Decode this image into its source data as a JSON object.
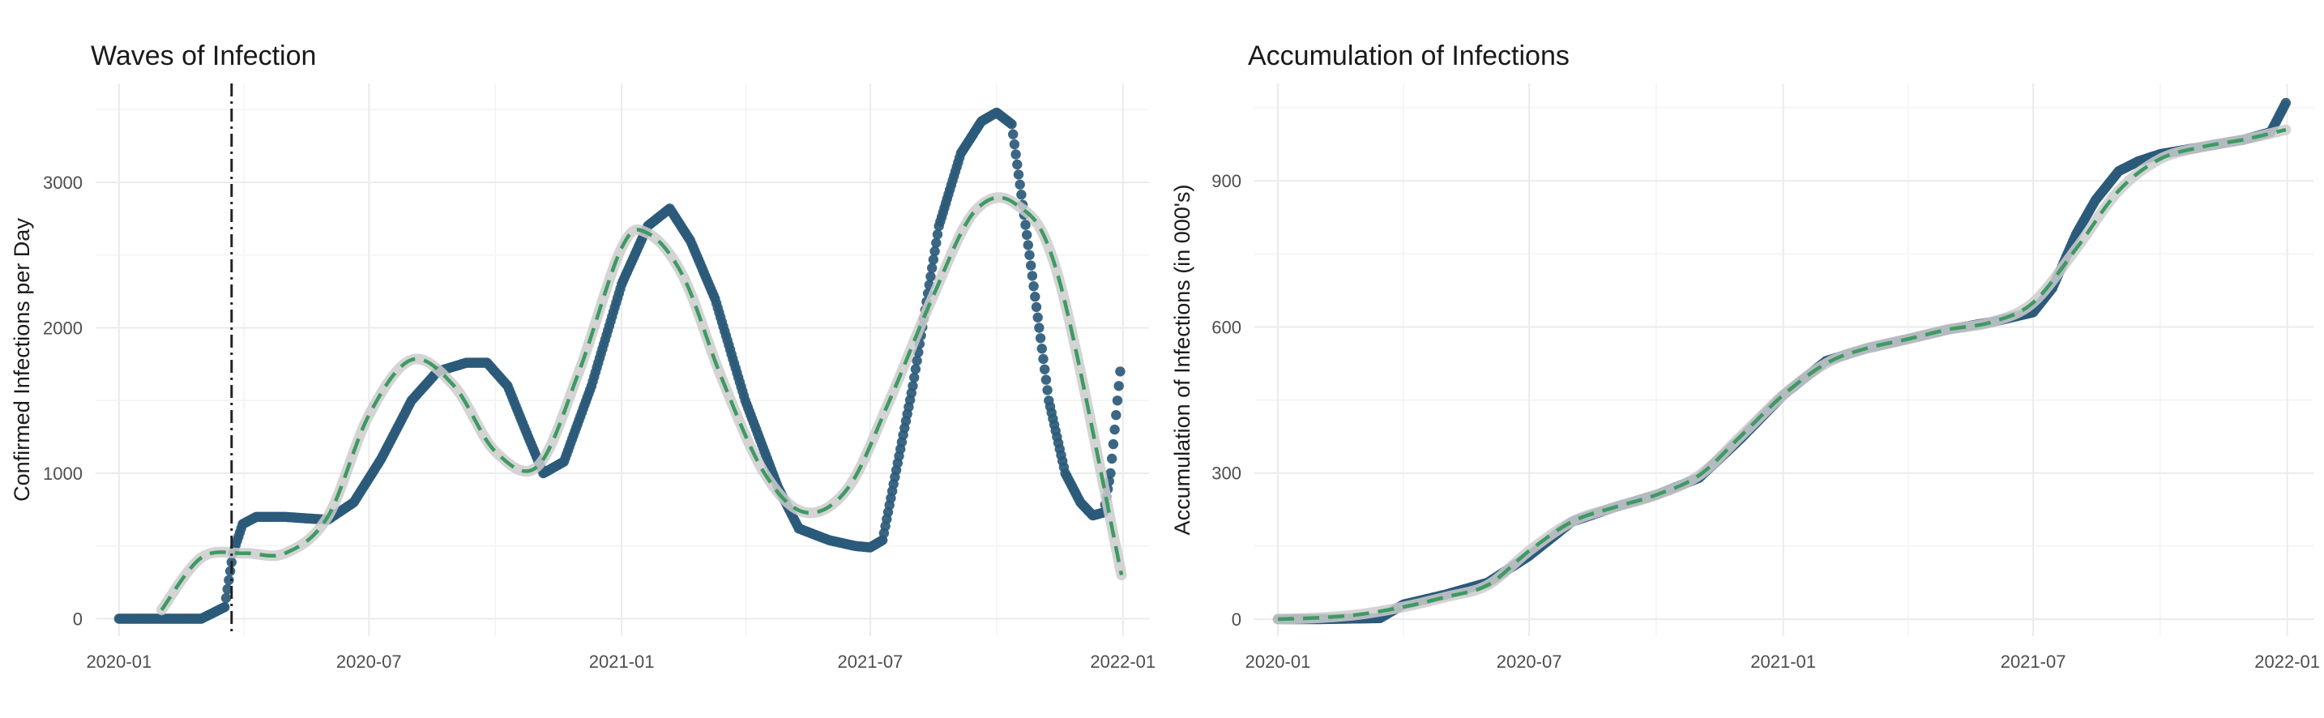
{
  "chart_data": [
    {
      "type": "scatter",
      "title": "Waves of Infection",
      "xlabel": "",
      "ylabel": "Confirmed Infections per Day",
      "x_ticks": [
        "2020-01",
        "2020-07",
        "2021-01",
        "2021-07",
        "2022-01"
      ],
      "y_ticks": [
        0,
        1000,
        2000,
        3000
      ],
      "xlim": [
        "2019-12-15",
        "2022-01-20"
      ],
      "ylim": [
        -120,
        3680
      ],
      "grid": true,
      "vline": {
        "x": "2020-03-23",
        "style": "dash-dot",
        "color": "#222222"
      },
      "series": [
        {
          "kind": "points",
          "color": "#2b5a7a",
          "x": [
            "2020-01-01",
            "2020-02-01",
            "2020-03-01",
            "2020-03-18",
            "2020-03-24",
            "2020-03-31",
            "2020-04-10",
            "2020-05-01",
            "2020-06-01",
            "2020-06-20",
            "2020-07-10",
            "2020-08-01",
            "2020-08-20",
            "2020-09-10",
            "2020-09-25",
            "2020-10-10",
            "2020-10-25",
            "2020-11-05",
            "2020-11-20",
            "2020-12-10",
            "2021-01-01",
            "2021-01-20",
            "2021-02-05",
            "2021-02-20",
            "2021-03-10",
            "2021-04-01",
            "2021-04-25",
            "2021-05-10",
            "2021-06-01",
            "2021-06-20",
            "2021-07-01",
            "2021-07-10",
            "2021-08-01",
            "2021-08-20",
            "2021-09-05",
            "2021-09-20",
            "2021-10-01",
            "2021-10-12",
            "2021-10-25",
            "2021-11-08",
            "2021-11-20",
            "2021-12-01",
            "2021-12-10",
            "2021-12-18",
            "2021-12-23",
            "2021-12-30"
          ],
          "y": [
            0,
            0,
            0,
            80,
            450,
            650,
            700,
            700,
            680,
            800,
            1100,
            1500,
            1700,
            1760,
            1760,
            1600,
            1250,
            1000,
            1080,
            1600,
            2300,
            2700,
            2820,
            2600,
            2200,
            1500,
            900,
            620,
            540,
            500,
            490,
            540,
            1600,
            2700,
            3200,
            3420,
            3480,
            3400,
            2500,
            1500,
            1000,
            800,
            710,
            730,
            1000,
            1700
          ]
        },
        {
          "kind": "smooth-band",
          "color": "#cccccc",
          "x": [
            "2020-02-01",
            "2020-03-01",
            "2020-04-01",
            "2020-05-01",
            "2020-06-01",
            "2020-07-01",
            "2020-08-01",
            "2020-09-01",
            "2020-10-01",
            "2020-11-01",
            "2020-12-01",
            "2021-01-01",
            "2021-01-20",
            "2021-02-15",
            "2021-03-15",
            "2021-04-15",
            "2021-05-15",
            "2021-06-15",
            "2021-07-15",
            "2021-08-15",
            "2021-09-15",
            "2021-10-15",
            "2021-11-15",
            "2021-12-31"
          ],
          "y": [
            60,
            420,
            450,
            450,
            700,
            1400,
            1780,
            1600,
            1150,
            1050,
            1700,
            2550,
            2650,
            2350,
            1650,
            1000,
            730,
            900,
            1500,
            2200,
            2800,
            2850,
            2350,
            300
          ]
        },
        {
          "kind": "dashed-fit",
          "color": "#3d9a63",
          "x": [
            "2020-02-01",
            "2020-03-01",
            "2020-04-01",
            "2020-05-01",
            "2020-06-01",
            "2020-07-01",
            "2020-08-01",
            "2020-09-01",
            "2020-10-01",
            "2020-11-01",
            "2020-12-01",
            "2021-01-01",
            "2021-01-20",
            "2021-02-15",
            "2021-03-15",
            "2021-04-15",
            "2021-05-15",
            "2021-06-15",
            "2021-07-15",
            "2021-08-15",
            "2021-09-15",
            "2021-10-15",
            "2021-11-15",
            "2021-12-31"
          ],
          "y": [
            60,
            420,
            450,
            450,
            700,
            1400,
            1780,
            1600,
            1150,
            1050,
            1700,
            2550,
            2650,
            2350,
            1650,
            1000,
            730,
            900,
            1500,
            2200,
            2800,
            2850,
            2350,
            300
          ]
        }
      ]
    },
    {
      "type": "scatter",
      "title": "Accumulation of Infections",
      "xlabel": "",
      "ylabel": "Accumulation of Infections (in 000's)",
      "x_ticks": [
        "2020-01",
        "2020-07",
        "2021-01",
        "2021-07",
        "2022-01"
      ],
      "y_ticks": [
        0,
        300,
        600,
        900
      ],
      "xlim": [
        "2019-12-15",
        "2022-01-20"
      ],
      "ylim": [
        -35,
        1100
      ],
      "grid": true,
      "series": [
        {
          "kind": "points",
          "color": "#2b5a7a",
          "x": [
            "2020-01-01",
            "2020-02-01",
            "2020-03-15",
            "2020-04-01",
            "2020-05-01",
            "2020-06-01",
            "2020-07-01",
            "2020-08-01",
            "2020-09-01",
            "2020-10-01",
            "2020-11-01",
            "2020-12-01",
            "2021-01-01",
            "2021-02-01",
            "2021-03-01",
            "2021-04-01",
            "2021-05-01",
            "2021-06-01",
            "2021-07-01",
            "2021-07-15",
            "2021-08-01",
            "2021-08-15",
            "2021-09-01",
            "2021-09-15",
            "2021-10-01",
            "2021-11-01",
            "2021-12-01",
            "2021-12-20",
            "2021-12-31"
          ],
          "y": [
            0,
            0,
            2,
            30,
            50,
            75,
            130,
            200,
            230,
            255,
            290,
            370,
            460,
            530,
            555,
            575,
            595,
            610,
            630,
            680,
            790,
            860,
            920,
            940,
            955,
            970,
            985,
            1000,
            1060
          ]
        },
        {
          "kind": "smooth-band",
          "color": "#cccccc",
          "x": [
            "2020-01-01",
            "2020-02-01",
            "2020-03-01",
            "2020-04-01",
            "2020-05-01",
            "2020-06-01",
            "2020-07-01",
            "2020-08-01",
            "2020-09-01",
            "2020-10-01",
            "2020-11-01",
            "2020-12-01",
            "2021-01-01",
            "2021-02-01",
            "2021-03-01",
            "2021-04-01",
            "2021-05-01",
            "2021-06-01",
            "2021-07-01",
            "2021-08-01",
            "2021-09-01",
            "2021-10-01",
            "2021-11-01",
            "2021-12-01",
            "2021-12-31"
          ],
          "y": [
            0,
            3,
            10,
            25,
            45,
            70,
            140,
            200,
            230,
            255,
            295,
            375,
            460,
            525,
            555,
            575,
            595,
            610,
            650,
            760,
            880,
            945,
            970,
            985,
            1005
          ]
        },
        {
          "kind": "dashed-fit",
          "color": "#3d9a63",
          "x": [
            "2020-01-01",
            "2020-02-01",
            "2020-03-01",
            "2020-04-01",
            "2020-05-01",
            "2020-06-01",
            "2020-07-01",
            "2020-08-01",
            "2020-09-01",
            "2020-10-01",
            "2020-11-01",
            "2020-12-01",
            "2021-01-01",
            "2021-02-01",
            "2021-03-01",
            "2021-04-01",
            "2021-05-01",
            "2021-06-01",
            "2021-07-01",
            "2021-08-01",
            "2021-09-01",
            "2021-10-01",
            "2021-11-01",
            "2021-12-01",
            "2021-12-31"
          ],
          "y": [
            0,
            3,
            10,
            25,
            45,
            70,
            140,
            200,
            230,
            255,
            295,
            375,
            460,
            525,
            555,
            575,
            595,
            610,
            650,
            760,
            880,
            945,
            970,
            985,
            1005
          ]
        }
      ]
    }
  ]
}
